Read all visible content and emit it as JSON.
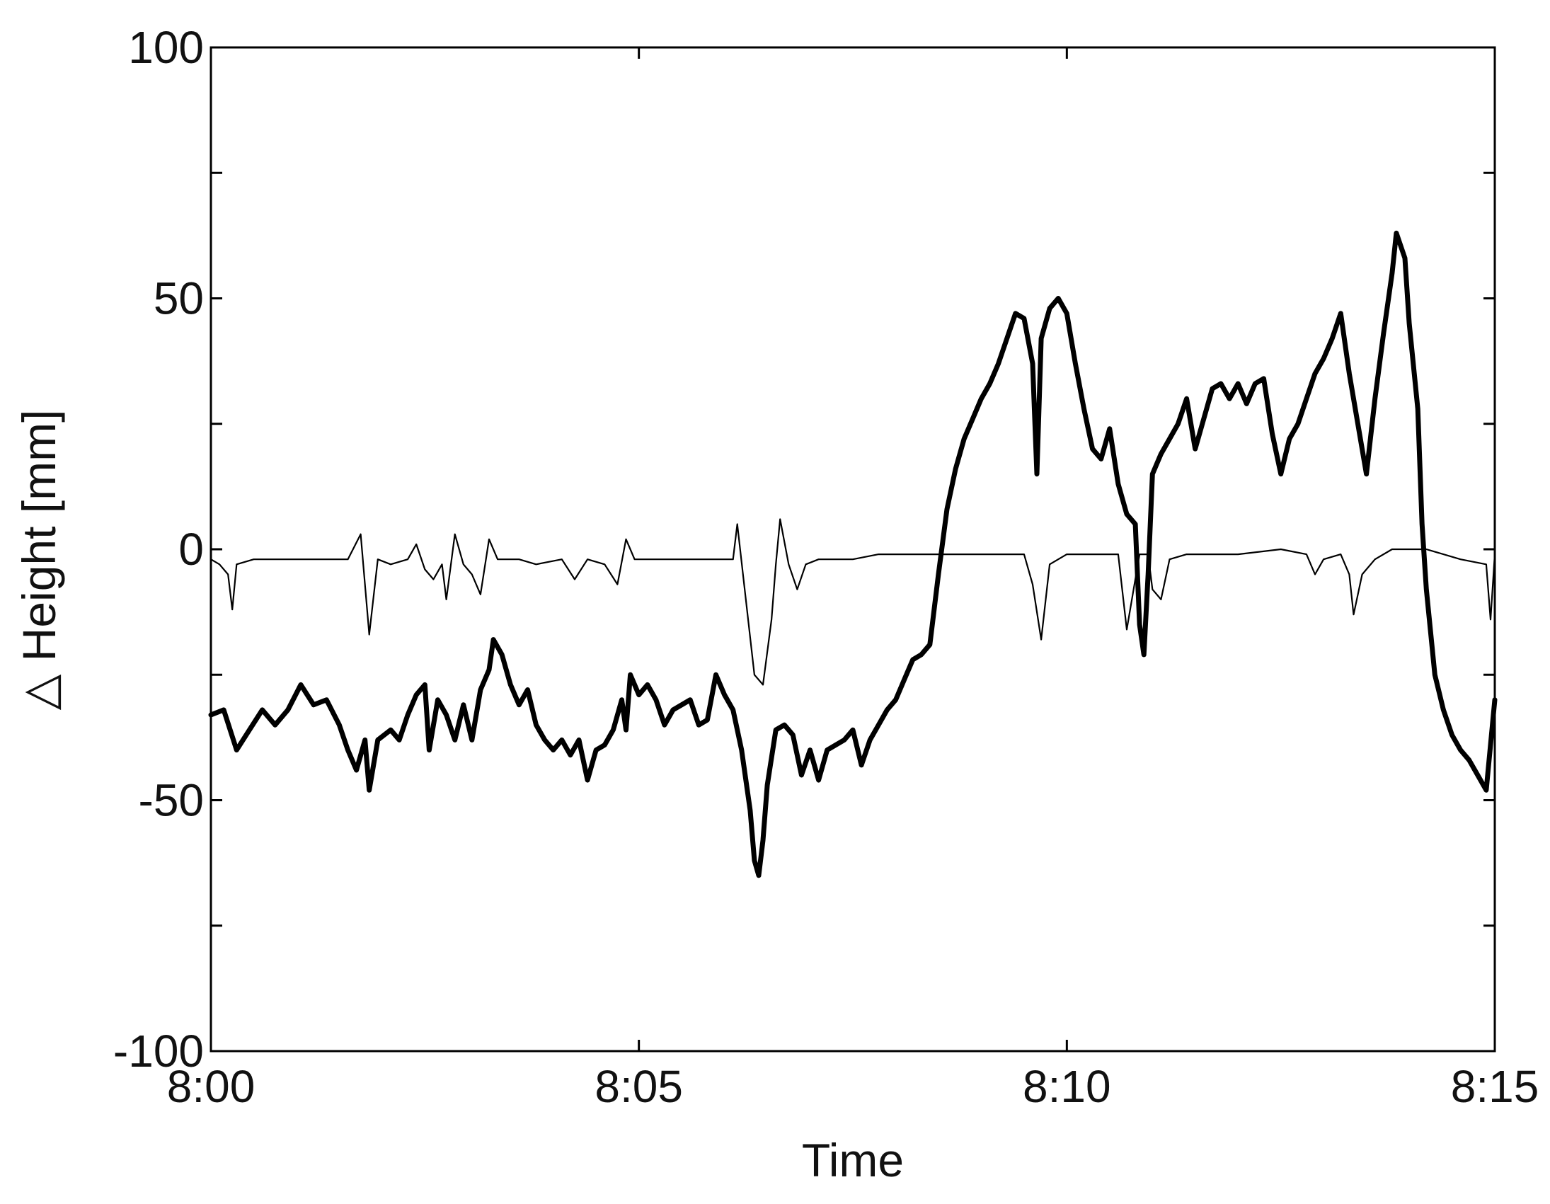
{
  "chart_data": {
    "type": "line",
    "title": "",
    "xlabel": "Time",
    "ylabel": "△ Height [mm]",
    "x_unit": "minutes",
    "xlim": [
      0,
      15
    ],
    "ylim": [
      -100,
      100
    ],
    "x_ticks": [
      {
        "value": 0,
        "label": "8:00"
      },
      {
        "value": 5,
        "label": "8:05"
      },
      {
        "value": 10,
        "label": "8:10"
      },
      {
        "value": 15,
        "label": "8:15"
      }
    ],
    "y_ticks": [
      {
        "value": 100,
        "label": "100"
      },
      {
        "value": 50,
        "label": "50"
      },
      {
        "value": 0,
        "label": "0"
      },
      {
        "value": -50,
        "label": "-50"
      },
      {
        "value": -100,
        "label": "-100"
      }
    ],
    "y_minor_ticks": [
      75,
      25,
      -25,
      -75
    ],
    "grid": false,
    "legend": "none",
    "series": [
      {
        "style": "thick",
        "color": "#000000",
        "points": [
          [
            0.0,
            -33
          ],
          [
            0.15,
            -32
          ],
          [
            0.3,
            -40
          ],
          [
            0.45,
            -36
          ],
          [
            0.6,
            -32
          ],
          [
            0.75,
            -35
          ],
          [
            0.9,
            -32
          ],
          [
            1.05,
            -27
          ],
          [
            1.2,
            -31
          ],
          [
            1.35,
            -30
          ],
          [
            1.5,
            -35
          ],
          [
            1.6,
            -40
          ],
          [
            1.7,
            -44
          ],
          [
            1.8,
            -38
          ],
          [
            1.85,
            -48
          ],
          [
            1.95,
            -38
          ],
          [
            2.1,
            -36
          ],
          [
            2.2,
            -38
          ],
          [
            2.3,
            -33
          ],
          [
            2.4,
            -29
          ],
          [
            2.5,
            -27
          ],
          [
            2.55,
            -40
          ],
          [
            2.65,
            -30
          ],
          [
            2.75,
            -33
          ],
          [
            2.85,
            -38
          ],
          [
            2.95,
            -31
          ],
          [
            3.05,
            -38
          ],
          [
            3.15,
            -28
          ],
          [
            3.25,
            -24
          ],
          [
            3.3,
            -18
          ],
          [
            3.4,
            -21
          ],
          [
            3.5,
            -27
          ],
          [
            3.6,
            -31
          ],
          [
            3.7,
            -28
          ],
          [
            3.8,
            -35
          ],
          [
            3.9,
            -38
          ],
          [
            4.0,
            -40
          ],
          [
            4.1,
            -38
          ],
          [
            4.2,
            -41
          ],
          [
            4.3,
            -38
          ],
          [
            4.4,
            -46
          ],
          [
            4.5,
            -40
          ],
          [
            4.6,
            -39
          ],
          [
            4.7,
            -36
          ],
          [
            4.8,
            -30
          ],
          [
            4.85,
            -36
          ],
          [
            4.9,
            -25
          ],
          [
            5.0,
            -29
          ],
          [
            5.1,
            -27
          ],
          [
            5.2,
            -30
          ],
          [
            5.3,
            -35
          ],
          [
            5.4,
            -32
          ],
          [
            5.5,
            -31
          ],
          [
            5.6,
            -30
          ],
          [
            5.7,
            -35
          ],
          [
            5.8,
            -34
          ],
          [
            5.9,
            -25
          ],
          [
            6.0,
            -29
          ],
          [
            6.1,
            -32
          ],
          [
            6.2,
            -40
          ],
          [
            6.3,
            -52
          ],
          [
            6.35,
            -62
          ],
          [
            6.4,
            -65
          ],
          [
            6.45,
            -58
          ],
          [
            6.5,
            -47
          ],
          [
            6.6,
            -36
          ],
          [
            6.7,
            -35
          ],
          [
            6.8,
            -37
          ],
          [
            6.9,
            -45
          ],
          [
            7.0,
            -40
          ],
          [
            7.1,
            -46
          ],
          [
            7.2,
            -40
          ],
          [
            7.3,
            -39
          ],
          [
            7.4,
            -38
          ],
          [
            7.5,
            -36
          ],
          [
            7.6,
            -43
          ],
          [
            7.7,
            -38
          ],
          [
            7.8,
            -35
          ],
          [
            7.9,
            -32
          ],
          [
            8.0,
            -30
          ],
          [
            8.1,
            -26
          ],
          [
            8.2,
            -22
          ],
          [
            8.3,
            -21
          ],
          [
            8.4,
            -19
          ],
          [
            8.5,
            -5
          ],
          [
            8.6,
            8
          ],
          [
            8.7,
            16
          ],
          [
            8.8,
            22
          ],
          [
            8.9,
            26
          ],
          [
            9.0,
            30
          ],
          [
            9.1,
            33
          ],
          [
            9.2,
            37
          ],
          [
            9.3,
            42
          ],
          [
            9.4,
            47
          ],
          [
            9.5,
            46
          ],
          [
            9.6,
            37
          ],
          [
            9.65,
            15
          ],
          [
            9.7,
            42
          ],
          [
            9.8,
            48
          ],
          [
            9.9,
            50
          ],
          [
            10.0,
            47
          ],
          [
            10.1,
            37
          ],
          [
            10.2,
            28
          ],
          [
            10.3,
            20
          ],
          [
            10.4,
            18
          ],
          [
            10.5,
            24
          ],
          [
            10.6,
            13
          ],
          [
            10.7,
            7
          ],
          [
            10.8,
            5
          ],
          [
            10.85,
            -15
          ],
          [
            10.9,
            -21
          ],
          [
            10.95,
            -5
          ],
          [
            11.0,
            15
          ],
          [
            11.1,
            19
          ],
          [
            11.2,
            22
          ],
          [
            11.3,
            25
          ],
          [
            11.4,
            30
          ],
          [
            11.5,
            20
          ],
          [
            11.6,
            26
          ],
          [
            11.7,
            32
          ],
          [
            11.8,
            33
          ],
          [
            11.9,
            30
          ],
          [
            12.0,
            33
          ],
          [
            12.1,
            29
          ],
          [
            12.2,
            33
          ],
          [
            12.3,
            34
          ],
          [
            12.4,
            23
          ],
          [
            12.5,
            15
          ],
          [
            12.6,
            22
          ],
          [
            12.7,
            25
          ],
          [
            12.8,
            30
          ],
          [
            12.9,
            35
          ],
          [
            13.0,
            38
          ],
          [
            13.1,
            42
          ],
          [
            13.2,
            47
          ],
          [
            13.3,
            35
          ],
          [
            13.4,
            25
          ],
          [
            13.5,
            15
          ],
          [
            13.6,
            30
          ],
          [
            13.7,
            43
          ],
          [
            13.8,
            55
          ],
          [
            13.85,
            63
          ],
          [
            13.95,
            58
          ],
          [
            14.0,
            45
          ],
          [
            14.1,
            28
          ],
          [
            14.15,
            5
          ],
          [
            14.2,
            -8
          ],
          [
            14.3,
            -25
          ],
          [
            14.4,
            -32
          ],
          [
            14.5,
            -37
          ],
          [
            14.6,
            -40
          ],
          [
            14.7,
            -42
          ],
          [
            14.8,
            -45
          ],
          [
            14.9,
            -48
          ],
          [
            15.0,
            -30
          ]
        ]
      },
      {
        "style": "thin",
        "color": "#000000",
        "points": [
          [
            0.0,
            -2
          ],
          [
            0.1,
            -3
          ],
          [
            0.2,
            -5
          ],
          [
            0.25,
            -12
          ],
          [
            0.3,
            -3
          ],
          [
            0.5,
            -2
          ],
          [
            0.8,
            -2
          ],
          [
            1.2,
            -2
          ],
          [
            1.6,
            -2
          ],
          [
            1.75,
            3
          ],
          [
            1.85,
            -17
          ],
          [
            1.95,
            -2
          ],
          [
            2.1,
            -3
          ],
          [
            2.3,
            -2
          ],
          [
            2.4,
            1
          ],
          [
            2.5,
            -4
          ],
          [
            2.6,
            -6
          ],
          [
            2.7,
            -3
          ],
          [
            2.75,
            -10
          ],
          [
            2.85,
            3
          ],
          [
            2.95,
            -3
          ],
          [
            3.05,
            -5
          ],
          [
            3.15,
            -9
          ],
          [
            3.25,
            2
          ],
          [
            3.35,
            -2
          ],
          [
            3.6,
            -2
          ],
          [
            3.8,
            -3
          ],
          [
            4.1,
            -2
          ],
          [
            4.25,
            -6
          ],
          [
            4.4,
            -2
          ],
          [
            4.6,
            -3
          ],
          [
            4.75,
            -7
          ],
          [
            4.85,
            2
          ],
          [
            4.95,
            -2
          ],
          [
            5.3,
            -2
          ],
          [
            5.7,
            -2
          ],
          [
            6.1,
            -2
          ],
          [
            6.15,
            5
          ],
          [
            6.25,
            -10
          ],
          [
            6.35,
            -25
          ],
          [
            6.45,
            -27
          ],
          [
            6.55,
            -14
          ],
          [
            6.6,
            -3
          ],
          [
            6.65,
            6
          ],
          [
            6.75,
            -3
          ],
          [
            6.85,
            -8
          ],
          [
            6.95,
            -3
          ],
          [
            7.1,
            -2
          ],
          [
            7.5,
            -2
          ],
          [
            7.8,
            -1
          ],
          [
            8.2,
            -1
          ],
          [
            8.6,
            -1
          ],
          [
            8.8,
            -1
          ],
          [
            9.2,
            -1
          ],
          [
            9.5,
            -1
          ],
          [
            9.6,
            -7
          ],
          [
            9.7,
            -18
          ],
          [
            9.8,
            -3
          ],
          [
            10.0,
            -1
          ],
          [
            10.4,
            -1
          ],
          [
            10.6,
            -1
          ],
          [
            10.7,
            -16
          ],
          [
            10.85,
            -1
          ],
          [
            10.95,
            -1
          ],
          [
            11.0,
            -8
          ],
          [
            11.1,
            -10
          ],
          [
            11.2,
            -2
          ],
          [
            11.4,
            -1
          ],
          [
            11.7,
            -1
          ],
          [
            12.0,
            -1
          ],
          [
            12.5,
            0
          ],
          [
            12.8,
            -1
          ],
          [
            12.9,
            -5
          ],
          [
            13.0,
            -2
          ],
          [
            13.2,
            -1
          ],
          [
            13.3,
            -5
          ],
          [
            13.35,
            -13
          ],
          [
            13.45,
            -5
          ],
          [
            13.6,
            -2
          ],
          [
            13.8,
            0
          ],
          [
            14.2,
            0
          ],
          [
            14.6,
            -2
          ],
          [
            14.9,
            -3
          ],
          [
            14.95,
            -14
          ],
          [
            15.0,
            -1
          ]
        ]
      }
    ]
  }
}
